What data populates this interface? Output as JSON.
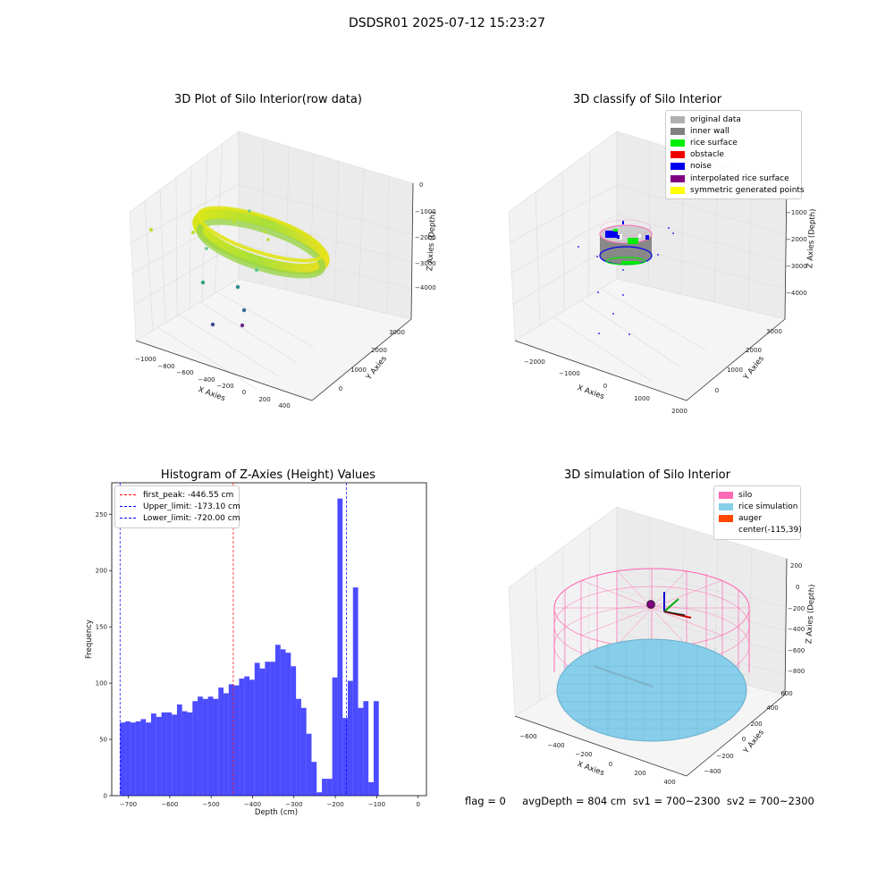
{
  "suptitle": "DSDSR01 2025-07-12 15:23:27",
  "panels": {
    "raw": {
      "title": "3D Plot of Silo Interior(row data)",
      "xlabel": "X Axies",
      "ylabel": "Y Axies",
      "zlabel": "Z Axies (Depth)",
      "xticks": [
        "−1000",
        "−800",
        "−600",
        "−400",
        "−200",
        "0",
        "200",
        "400"
      ],
      "yticks": [
        "0",
        "1000",
        "2000",
        "3000"
      ],
      "zticks": [
        "0",
        "−1000",
        "−2000",
        "−3000",
        "−4000"
      ]
    },
    "classify": {
      "title": "3D classify of Silo Interior",
      "xlabel": "X Axies",
      "ylabel": "Y Axies",
      "zlabel": "Z Axies (Depth)",
      "xticks": [
        "−2000",
        "−1000",
        "0",
        "1000",
        "2000"
      ],
      "yticks": [
        "0",
        "1000",
        "2000",
        "3000"
      ],
      "zticks": [
        "0",
        "−1000",
        "−2000",
        "−3000",
        "−4000"
      ],
      "legend": [
        {
          "label": "original data",
          "color": "#b0b0b0"
        },
        {
          "label": "inner wall",
          "color": "#808080"
        },
        {
          "label": "rice surface",
          "color": "#00ee00"
        },
        {
          "label": "obstacle",
          "color": "#ee0000"
        },
        {
          "label": "noise",
          "color": "#0000ee"
        },
        {
          "label": "interpolated rice surface",
          "color": "#800080"
        },
        {
          "label": "symmetric generated points",
          "color": "#ffff00"
        }
      ]
    },
    "simulation": {
      "title": "3D simulation of Silo Interior",
      "xlabel": "X Axies",
      "ylabel": "Y Axies",
      "zlabel": "Z Axies (Depth)",
      "xticks": [
        "−600",
        "−400",
        "−200",
        "0",
        "200",
        "400"
      ],
      "yticks": [
        "−400",
        "−200",
        "0",
        "200",
        "400",
        "600"
      ],
      "zticks": [
        "200",
        "0",
        "−200",
        "−400",
        "−600",
        "−800"
      ],
      "legend": [
        {
          "label": "silo",
          "color": "#ff69b4"
        },
        {
          "label": "rice simulation",
          "color": "#87ceeb"
        },
        {
          "label": "auger",
          "color": "#ff4500"
        },
        {
          "label": "center(-115,39)",
          "color": "#ffffff"
        }
      ]
    }
  },
  "footer": {
    "text": "flag = 0     avgDepth = 804 cm  sv1 = 700~2300  sv2 = 700~2300"
  },
  "chart_data": [
    {
      "type": "bar",
      "title": "Histogram of Z-Axies (Height) Values",
      "xlabel": "Depth (cm)",
      "ylabel": "Frequency",
      "xlim": [
        -740,
        20
      ],
      "ylim": [
        0,
        278
      ],
      "bin_start": -720,
      "bin_width": 12.5,
      "values": [
        65,
        66,
        65,
        66,
        68,
        65,
        73,
        70,
        74,
        74,
        72,
        81,
        75,
        74,
        84,
        88,
        86,
        88,
        86,
        96,
        91,
        99,
        98,
        104,
        106,
        103,
        118,
        113,
        119,
        119,
        134,
        130,
        127,
        115,
        86,
        78,
        55,
        30,
        3,
        15,
        15,
        105,
        264,
        69,
        102,
        185,
        78,
        84,
        12,
        84
      ],
      "series_color": "#0000ff",
      "xticks": [
        -700,
        -600,
        -500,
        -400,
        -300,
        -200,
        -100,
        0
      ],
      "yticks": [
        0,
        50,
        100,
        150,
        200,
        250
      ],
      "vlines": [
        {
          "label": "first_peak: -446.55 cm",
          "x": -446.55,
          "color": "#ff0000"
        },
        {
          "label": "Upper_limit: -173.10 cm",
          "x": -173.1,
          "color": "#0000ff"
        },
        {
          "label": "Lower_limit: -720.00 cm",
          "x": -720.0,
          "color": "#0000ff"
        }
      ]
    }
  ]
}
